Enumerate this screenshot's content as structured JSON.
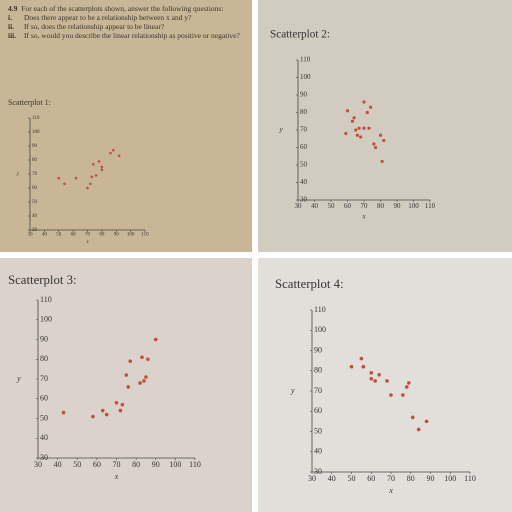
{
  "problem": {
    "number": "4.9",
    "intro": "For each of the scatterplots shown, answer the following questions:",
    "items": [
      {
        "label": "i.",
        "text": "Does there appear to be a relationship between x and y?"
      },
      {
        "label": "ii.",
        "text": "If so, does the relationship appear to be linear?"
      },
      {
        "label": "iii.",
        "text": "If so, would you describe the linear relationship as positive or negative?"
      }
    ]
  },
  "chart_data": [
    {
      "type": "scatter",
      "title": "Scatterplot 1:",
      "xlabel": "x",
      "ylabel": "y",
      "color": "#c0503e",
      "x": [
        50,
        54,
        62,
        70,
        72,
        73,
        74,
        76,
        78,
        80,
        80,
        86,
        88,
        92
      ],
      "y": [
        67,
        63,
        67,
        60,
        63,
        68,
        77,
        69,
        79,
        75,
        73,
        85,
        87,
        83
      ],
      "xlim": [
        30,
        110
      ],
      "ylim": [
        30,
        110
      ],
      "xticks": [
        30,
        40,
        50,
        60,
        70,
        80,
        90,
        100,
        110
      ],
      "yticks": [
        30,
        40,
        50,
        60,
        70,
        80,
        90,
        100,
        110
      ]
    },
    {
      "type": "scatter",
      "title": "Scatterplot 2:",
      "xlabel": "x",
      "ylabel": "y",
      "color": "#c0503e",
      "x": [
        59,
        60,
        63,
        64,
        65,
        66,
        67,
        68,
        70,
        70,
        72,
        73,
        74,
        76,
        77,
        80,
        81,
        82
      ],
      "y": [
        68,
        81,
        75,
        77,
        70,
        67,
        71,
        66,
        71,
        86,
        80,
        71,
        83,
        62,
        60,
        67,
        52,
        64
      ],
      "xlim": [
        30,
        110
      ],
      "ylim": [
        30,
        110
      ],
      "xticks": [
        30,
        40,
        50,
        60,
        70,
        80,
        90,
        100,
        110
      ],
      "yticks": [
        30,
        40,
        50,
        60,
        70,
        80,
        90,
        100,
        110
      ]
    },
    {
      "type": "scatter",
      "title": "Scatterplot 3:",
      "xlabel": "x",
      "ylabel": "y",
      "color": "#c0503e",
      "x": [
        43,
        58,
        63,
        65,
        70,
        72,
        73,
        75,
        76,
        77,
        82,
        83,
        84,
        85,
        86,
        90
      ],
      "y": [
        53,
        51,
        54,
        52,
        58,
        54,
        57,
        72,
        66,
        79,
        68,
        81,
        69,
        71,
        80,
        90
      ],
      "xlim": [
        30,
        110
      ],
      "ylim": [
        30,
        110
      ],
      "xticks": [
        30,
        40,
        50,
        60,
        70,
        80,
        90,
        100,
        110
      ],
      "yticks": [
        30,
        40,
        50,
        60,
        70,
        80,
        90,
        100,
        110
      ]
    },
    {
      "type": "scatter",
      "title": "Scatterplot 4:",
      "xlabel": "x",
      "ylabel": "y",
      "color": "#c0503e",
      "x": [
        50,
        55,
        56,
        60,
        60,
        62,
        64,
        68,
        70,
        76,
        78,
        79,
        81,
        84,
        88
      ],
      "y": [
        82,
        86,
        82,
        79,
        76,
        75,
        78,
        75,
        68,
        68,
        72,
        74,
        57,
        51,
        55
      ],
      "xlim": [
        30,
        110
      ],
      "ylim": [
        30,
        110
      ],
      "xticks": [
        30,
        40,
        50,
        60,
        70,
        80,
        90,
        100,
        110
      ],
      "yticks": [
        30,
        40,
        50,
        60,
        70,
        80,
        90,
        100,
        110
      ]
    }
  ]
}
